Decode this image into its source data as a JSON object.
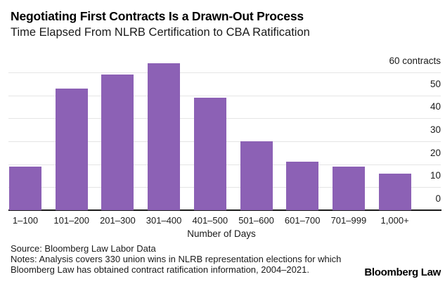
{
  "header": {
    "title": "Negotiating First Contracts Is a Drawn-Out Process",
    "subtitle": "Time Elapsed From NLRB Certification to CBA Ratification"
  },
  "chart_data": {
    "type": "bar",
    "title": "Negotiating First Contracts Is a Drawn-Out Process",
    "subtitle": "Time Elapsed From NLRB Certification to CBA Ratification",
    "categories": [
      "1–100",
      "101–200",
      "201–300",
      "301–400",
      "401–500",
      "501–600",
      "601–700",
      "701–999",
      "1,000+"
    ],
    "values": [
      19,
      53,
      59,
      64,
      49,
      30,
      21,
      19,
      16
    ],
    "xlabel": "Number of Days",
    "ylabel_unit": "contracts",
    "ylim": [
      0,
      65
    ],
    "yticks": [
      {
        "value": 0,
        "label": "0"
      },
      {
        "value": 10,
        "label": "10"
      },
      {
        "value": 20,
        "label": "20"
      },
      {
        "value": 30,
        "label": "30"
      },
      {
        "value": 40,
        "label": "40"
      },
      {
        "value": 50,
        "label": "50"
      },
      {
        "value": 60,
        "label": "60 contracts"
      }
    ],
    "grid": "horizontal",
    "legend": "none",
    "bar_color": "#8c61b5",
    "gridline_color": "#e5e5e5",
    "axis_line_color": "#1a1a1a",
    "total_note": 330
  },
  "footer": {
    "source": "Source: Bloomberg Law Labor Data",
    "notes": "Notes: Analysis covers 330 union wins in NLRB representation elections for which Bloomberg Law has obtained contract ratification information, 2004–2021.",
    "logo": "Bloomberg Law"
  }
}
